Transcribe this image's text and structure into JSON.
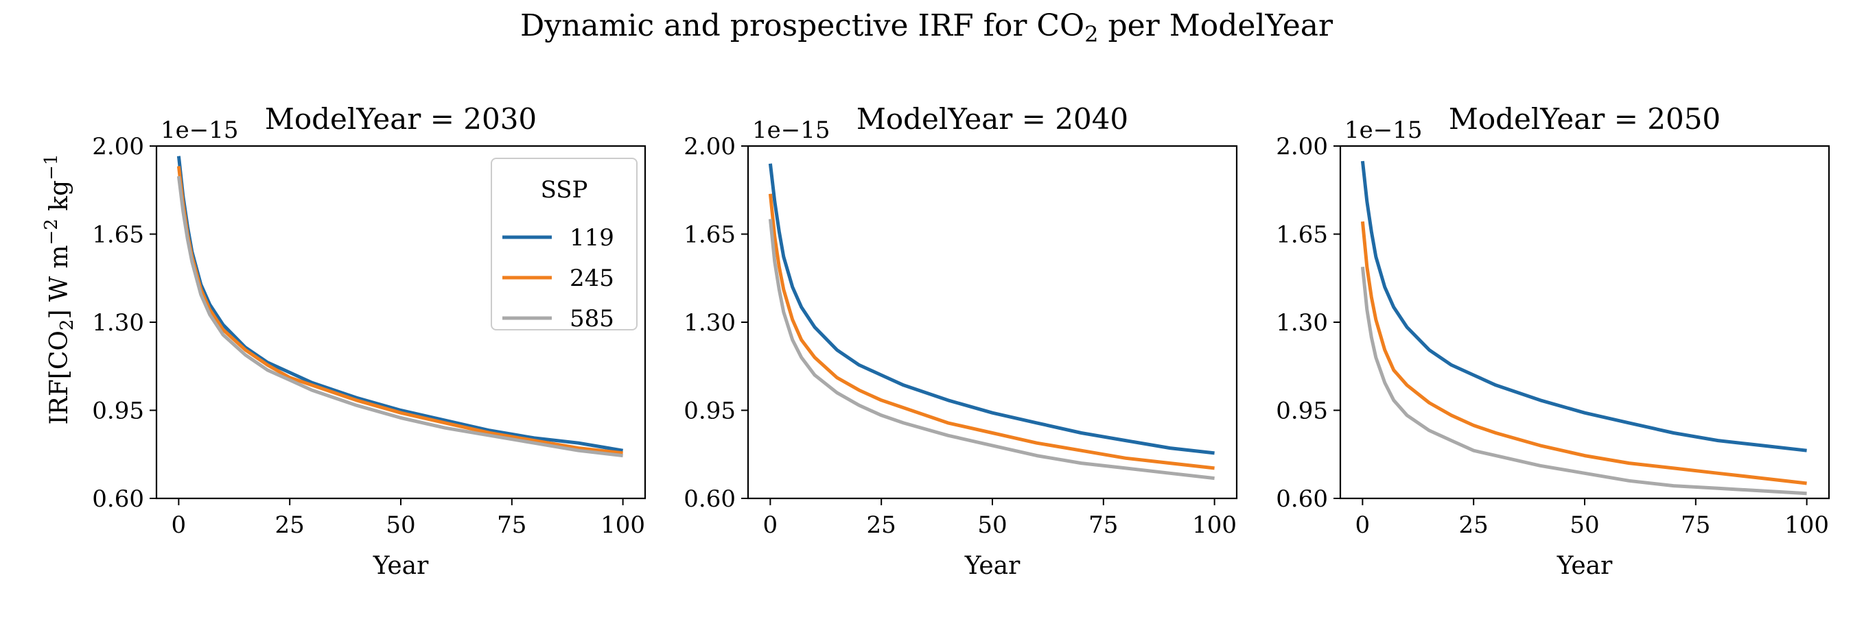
{
  "figure": {
    "title_main": "Dynamic and prospective IRF for CO",
    "title_sub": "2",
    "title_tail": " per ModelYear"
  },
  "y_axis": {
    "label_prefix": "IRF[CO",
    "label_sub": "2",
    "label_mid": "]  W m",
    "label_exp1": "−2",
    "label_kg": " kg",
    "label_exp2": "−1",
    "offset_text": "1e−15"
  },
  "x_axis": {
    "label": "Year"
  },
  "legend": {
    "title": "SSP",
    "entries": [
      "119",
      "245",
      "585"
    ]
  },
  "colors": {
    "ssp119": "#1f6aa5",
    "ssp245": "#f07f1e",
    "ssp585": "#a9a9a9"
  },
  "chart_data": [
    {
      "type": "line",
      "title": "ModelYear = 2030",
      "xlabel": "Year",
      "ylabel": "IRF[CO2]  W m−2 kg−1",
      "xlim": [
        -5,
        105
      ],
      "ylim": [
        0.6,
        2.0
      ],
      "y_scale_multiplier": "1e-15",
      "xticks": [
        0,
        25,
        50,
        75,
        100
      ],
      "yticks": [
        "0.60",
        "0.95",
        "1.30",
        "1.65",
        "2.00"
      ],
      "grid": false,
      "legend_position": "top-right",
      "x": [
        0,
        1,
        2,
        3,
        5,
        7,
        10,
        15,
        20,
        25,
        30,
        40,
        50,
        60,
        70,
        80,
        90,
        100
      ],
      "series": [
        {
          "name": "119",
          "values": [
            1.96,
            1.8,
            1.68,
            1.58,
            1.45,
            1.37,
            1.29,
            1.2,
            1.14,
            1.1,
            1.06,
            1.0,
            0.95,
            0.91,
            0.87,
            0.84,
            0.82,
            0.79
          ]
        },
        {
          "name": "245",
          "values": [
            1.92,
            1.77,
            1.65,
            1.56,
            1.43,
            1.35,
            1.27,
            1.19,
            1.13,
            1.08,
            1.05,
            0.99,
            0.94,
            0.9,
            0.86,
            0.83,
            0.8,
            0.78
          ]
        },
        {
          "name": "585",
          "values": [
            1.88,
            1.74,
            1.63,
            1.54,
            1.41,
            1.33,
            1.25,
            1.17,
            1.11,
            1.07,
            1.03,
            0.97,
            0.92,
            0.88,
            0.85,
            0.82,
            0.79,
            0.77
          ]
        }
      ]
    },
    {
      "type": "line",
      "title": "ModelYear = 2040",
      "xlabel": "Year",
      "xlim": [
        -5,
        105
      ],
      "ylim": [
        0.6,
        2.0
      ],
      "y_scale_multiplier": "1e-15",
      "xticks": [
        0,
        25,
        50,
        75,
        100
      ],
      "yticks": [
        "0.60",
        "0.95",
        "1.30",
        "1.65",
        "2.00"
      ],
      "grid": false,
      "x": [
        0,
        1,
        2,
        3,
        5,
        7,
        10,
        15,
        20,
        25,
        30,
        40,
        50,
        60,
        70,
        80,
        90,
        100
      ],
      "series": [
        {
          "name": "119",
          "values": [
            1.93,
            1.78,
            1.66,
            1.56,
            1.44,
            1.36,
            1.28,
            1.19,
            1.13,
            1.09,
            1.05,
            0.99,
            0.94,
            0.9,
            0.86,
            0.83,
            0.8,
            0.78
          ]
        },
        {
          "name": "245",
          "values": [
            1.81,
            1.64,
            1.52,
            1.43,
            1.31,
            1.23,
            1.16,
            1.08,
            1.03,
            0.99,
            0.96,
            0.9,
            0.86,
            0.82,
            0.79,
            0.76,
            0.74,
            0.72
          ]
        },
        {
          "name": "585",
          "values": [
            1.71,
            1.54,
            1.43,
            1.34,
            1.23,
            1.16,
            1.09,
            1.02,
            0.97,
            0.93,
            0.9,
            0.85,
            0.81,
            0.77,
            0.74,
            0.72,
            0.7,
            0.68
          ]
        }
      ]
    },
    {
      "type": "line",
      "title": "ModelYear = 2050",
      "xlabel": "Year",
      "xlim": [
        -5,
        105
      ],
      "ylim": [
        0.6,
        2.0
      ],
      "y_scale_multiplier": "1e-15",
      "xticks": [
        0,
        25,
        50,
        75,
        100
      ],
      "yticks": [
        "0.60",
        "0.95",
        "1.30",
        "1.65",
        "2.00"
      ],
      "grid": false,
      "x": [
        0,
        1,
        2,
        3,
        5,
        7,
        10,
        15,
        20,
        25,
        30,
        40,
        50,
        60,
        70,
        80,
        90,
        100
      ],
      "series": [
        {
          "name": "119",
          "values": [
            1.94,
            1.78,
            1.66,
            1.56,
            1.44,
            1.36,
            1.28,
            1.19,
            1.13,
            1.09,
            1.05,
            0.99,
            0.94,
            0.9,
            0.86,
            0.83,
            0.81,
            0.79
          ]
        },
        {
          "name": "245",
          "values": [
            1.7,
            1.52,
            1.4,
            1.31,
            1.19,
            1.11,
            1.05,
            0.98,
            0.93,
            0.89,
            0.86,
            0.81,
            0.77,
            0.74,
            0.72,
            0.7,
            0.68,
            0.66
          ]
        },
        {
          "name": "585",
          "values": [
            1.52,
            1.35,
            1.24,
            1.16,
            1.06,
            0.99,
            0.93,
            0.87,
            0.83,
            0.79,
            0.77,
            0.73,
            0.7,
            0.67,
            0.65,
            0.64,
            0.63,
            0.62
          ]
        }
      ]
    }
  ]
}
